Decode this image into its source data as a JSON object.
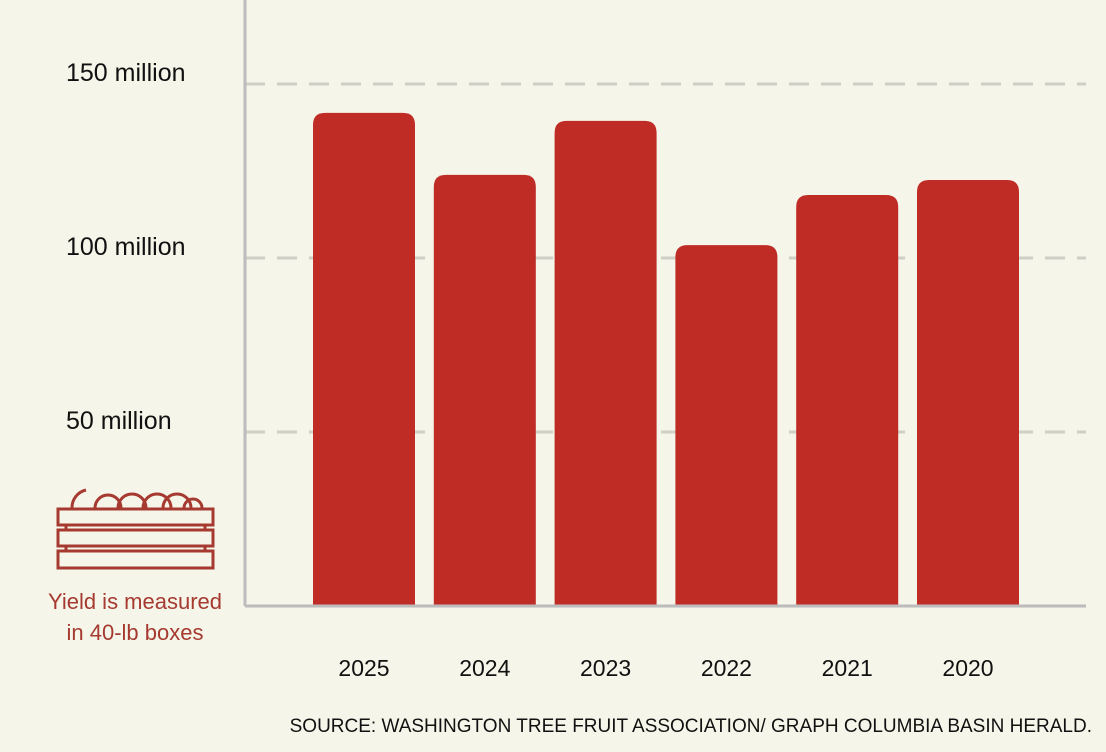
{
  "chart_data": {
    "type": "bar",
    "categories": [
      "2025",
      "2024",
      "2023",
      "2022",
      "2021",
      "2020"
    ],
    "values": [
      141.7,
      123.9,
      139.4,
      103.7,
      118.1,
      122.4
    ],
    "unit": "million",
    "ylim": [
      0,
      150
    ],
    "yticks": [
      {
        "value": 50,
        "label": "50 million"
      },
      {
        "value": 100,
        "label": "100 million"
      },
      {
        "value": 150,
        "label": "150 million"
      }
    ],
    "grid": "dashed horizontal",
    "colors": {
      "bar": "#bf2c26",
      "grid": "#cfcfc6",
      "axis": "#bcbcbc",
      "note": "#a63a30",
      "background": "#f5f5e9"
    },
    "legend": "none"
  },
  "note": {
    "icon": "apple-crate-icon",
    "text": "Yield is measured in 40-lb boxes"
  },
  "source": "SOURCE: WASHINGTON TREE FRUIT ASSOCIATION/ GRAPH COLUMBIA BASIN HERALD."
}
